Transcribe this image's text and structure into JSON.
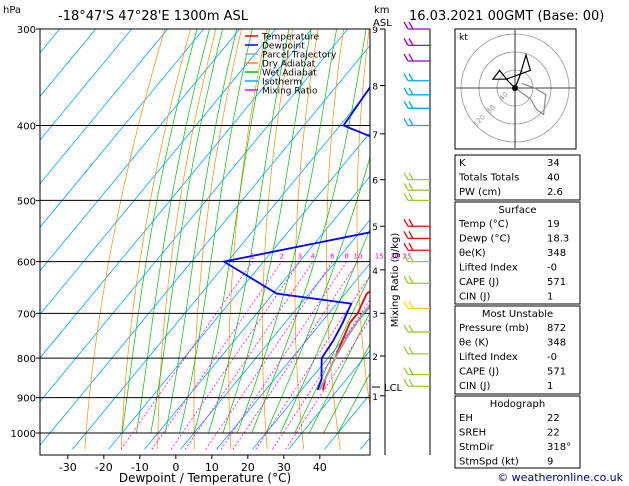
{
  "header": {
    "pressure_unit": "hPa",
    "location": "-18°47'S  47°28'E  1300m  ASL",
    "height_unit": "km",
    "height_ref": "ASL",
    "datetime": "16.03.2021  00GMT  (Base: 00)"
  },
  "footer": {
    "credit": "© weatheronline.co.uk"
  },
  "chart_data": {
    "type": "line",
    "xlabel": "Dewpoint / Temperature (°C)",
    "ylabel": "hPa",
    "y_right_label": "Mixing Ratio (g/kg)",
    "xlim": [
      -35,
      40
    ],
    "ylim": [
      1050,
      300
    ],
    "x_ticks": [
      -30,
      -20,
      -10,
      0,
      10,
      20,
      30,
      40
    ],
    "pressure_ticks": [
      300,
      400,
      500,
      600,
      700,
      800,
      900,
      1000
    ],
    "height_ticks": [
      {
        "label": "9",
        "p": 300
      },
      {
        "label": "8",
        "p": 355
      },
      {
        "label": "7",
        "p": 410
      },
      {
        "label": "6",
        "p": 470
      },
      {
        "label": "5",
        "p": 540
      },
      {
        "label": "4",
        "p": 615
      },
      {
        "label": "3",
        "p": 700
      },
      {
        "label": "2",
        "p": 795
      },
      {
        "label": "1",
        "p": 895
      }
    ],
    "lcl": {
      "label": "LCL",
      "p": 872
    },
    "mixing_ratio_labels": [
      "1",
      "2",
      "3",
      "4",
      "6",
      "8",
      "10",
      "15",
      "20",
      "25"
    ],
    "mixing_ratio_values": [
      1,
      2,
      3,
      4,
      6,
      8,
      10,
      15,
      20,
      25
    ],
    "legend": [
      {
        "name": "Temperature",
        "color": "#ff0000"
      },
      {
        "name": "Dewpoint",
        "color": "#0000ff"
      },
      {
        "name": "Parcel Trajectory",
        "color": "#a0a0a0"
      },
      {
        "name": "Dry Adiabat",
        "color": "#ff8c00"
      },
      {
        "name": "Wet Adiabat",
        "color": "#00c000"
      },
      {
        "name": "Isotherm",
        "color": "#00aaff"
      },
      {
        "name": "Mixing Ratio",
        "color": "#ff00ff"
      }
    ],
    "series": [
      {
        "name": "Temperature",
        "color": "#ff0000",
        "p": [
          880,
          850,
          800,
          760,
          720,
          700,
          680,
          660,
          640,
          620,
          600,
          570,
          550,
          530,
          510,
          490,
          470,
          450,
          420,
          400,
          370,
          350
        ],
        "t": [
          26,
          24,
          22,
          20,
          18,
          18,
          17,
          16,
          18,
          18,
          18,
          16,
          15,
          14,
          17,
          15,
          14,
          13,
          12,
          11,
          9,
          8
        ]
      },
      {
        "name": "Dewpoint",
        "color": "#0000ff",
        "p": [
          880,
          860,
          850,
          840,
          800,
          760,
          720,
          700,
          680,
          660,
          600,
          530,
          525,
          510,
          490,
          470,
          450,
          420,
          400,
          370,
          340,
          320,
          300
        ],
        "t": [
          24.5,
          23.5,
          23,
          22,
          18.3,
          17.5,
          16,
          15,
          14,
          -9,
          -31,
          17,
          16,
          2,
          2,
          3,
          0,
          -14,
          -29,
          -30,
          -31,
          -33,
          -22
        ]
      },
      {
        "name": "Parcel Trajectory",
        "color": "#a0a0a0",
        "p": [
          880,
          850,
          800,
          750,
          700,
          650,
          600,
          550,
          500,
          450,
          400,
          350
        ],
        "t": [
          25,
          24,
          22,
          20.5,
          19.5,
          19.5,
          19,
          18.5,
          18,
          16.5,
          14.5,
          12
        ]
      }
    ],
    "wind_barbs": [
      {
        "p": 300,
        "color": "#9400d3"
      },
      {
        "p": 315,
        "color": "#9400d3"
      },
      {
        "p": 330,
        "color": "#9400d3"
      },
      {
        "p": 350,
        "color": "#00aaff"
      },
      {
        "p": 365,
        "color": "#00aaff"
      },
      {
        "p": 380,
        "color": "#00aaff"
      },
      {
        "p": 400,
        "color": "#00aaff"
      },
      {
        "p": 470,
        "color": "#9acd32"
      },
      {
        "p": 485,
        "color": "#9acd32"
      },
      {
        "p": 500,
        "color": "#9acd32"
      },
      {
        "p": 540,
        "color": "#ff0000"
      },
      {
        "p": 560,
        "color": "#ff0000"
      },
      {
        "p": 580,
        "color": "#ff0000"
      },
      {
        "p": 600,
        "color": "#9acd32"
      },
      {
        "p": 640,
        "color": "#9acd32"
      },
      {
        "p": 690,
        "color": "#ffd700"
      },
      {
        "p": 740,
        "color": "#9acd32"
      },
      {
        "p": 790,
        "color": "#9acd32"
      },
      {
        "p": 840,
        "color": "#9acd32"
      },
      {
        "p": 870,
        "color": "#9acd32"
      }
    ],
    "hodograph": {
      "unit_label": "kt",
      "ring_labels": [
        "120",
        "80",
        "40"
      ],
      "black_u": [
        0,
        2,
        5,
        7,
        -4,
        -10,
        -7,
        -3,
        0
      ],
      "black_v": [
        0,
        5,
        15,
        8,
        4,
        4,
        8,
        3,
        0
      ],
      "gray_u": [
        0,
        7,
        10,
        13,
        14,
        9,
        3
      ],
      "gray_v": [
        0,
        -5,
        -10,
        -12,
        -3,
        0,
        2
      ]
    }
  },
  "indices": {
    "general": [
      {
        "label": "K",
        "value": "34"
      },
      {
        "label": "Totals Totals",
        "value": "40"
      },
      {
        "label": "PW (cm)",
        "value": "2.6"
      }
    ],
    "surface": {
      "title": "Surface",
      "rows": [
        {
          "label": "Temp (°C)",
          "value": "19"
        },
        {
          "label": "Dewp (°C)",
          "value": "18.3"
        },
        {
          "label": "θe(K)",
          "value": "348"
        },
        {
          "label": "Lifted Index",
          "value": "-0"
        },
        {
          "label": "CAPE (J)",
          "value": "571"
        },
        {
          "label": "CIN (J)",
          "value": "1"
        }
      ]
    },
    "most_unstable": {
      "title": "Most Unstable",
      "rows": [
        {
          "label": "Pressure (mb)",
          "value": "872"
        },
        {
          "label": "θe (K)",
          "value": "348"
        },
        {
          "label": "Lifted Index",
          "value": "-0"
        },
        {
          "label": "CAPE (J)",
          "value": "571"
        },
        {
          "label": "CIN (J)",
          "value": "1"
        }
      ]
    },
    "hodograph": {
      "title": "Hodograph",
      "rows": [
        {
          "label": "EH",
          "value": "22"
        },
        {
          "label": "SREH",
          "value": "22"
        },
        {
          "label": "StmDir",
          "value": "318°"
        },
        {
          "label": "StmSpd (kt)",
          "value": "9"
        }
      ]
    }
  }
}
